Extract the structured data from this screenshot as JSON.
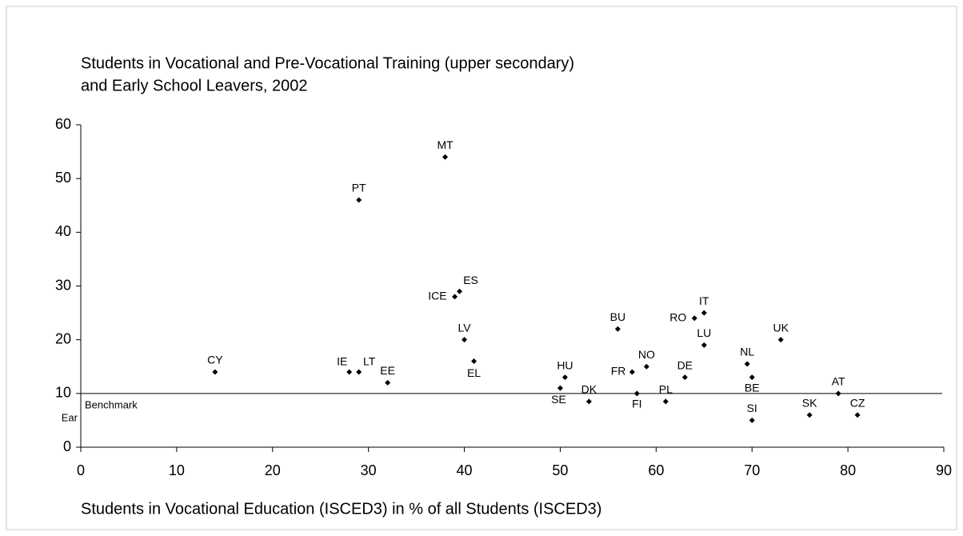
{
  "chart_data": {
    "type": "scatter",
    "title_lines": [
      "Students in Vocational and Pre-Vocational Training (upper secondary)",
      "and Early School Leavers, 2002"
    ],
    "x_label": "Students in Vocational Education (ISCED3) in % of all Students (ISCED3)",
    "benchmark": {
      "value": 10,
      "label": "Benchmark",
      "note": "Ear"
    },
    "xlim": [
      0,
      90
    ],
    "xticks": [
      0,
      10,
      20,
      30,
      40,
      50,
      60,
      70,
      80,
      90
    ],
    "ylim": [
      0,
      60
    ],
    "yticks": [
      0,
      10,
      20,
      30,
      40,
      50,
      60
    ],
    "color": "#000000",
    "labels": [
      "MT",
      "PT",
      "ES",
      "ICE",
      "LV",
      "EL",
      "CY",
      "IE",
      "LT",
      "EE",
      "HU",
      "SE",
      "DK",
      "FR",
      "NO",
      "FI",
      "PL",
      "BU",
      "DE",
      "RO",
      "IT",
      "LU",
      "NL",
      "BE",
      "SI",
      "UK",
      "AT",
      "SK",
      "CZ"
    ],
    "x": [
      38,
      29,
      39.5,
      39,
      40,
      41,
      14,
      28,
      29,
      32,
      50.5,
      50,
      53,
      57.5,
      59,
      58,
      61,
      56,
      63,
      64,
      65,
      65,
      69.5,
      70,
      70,
      73,
      79,
      76,
      81
    ],
    "y": [
      54,
      46,
      29,
      28,
      20,
      16,
      14,
      14,
      14,
      12,
      13,
      11,
      8.5,
      14,
      15,
      10,
      8.5,
      22,
      13,
      24,
      25,
      19,
      15.5,
      13,
      5,
      20,
      10,
      6,
      6
    ]
  }
}
